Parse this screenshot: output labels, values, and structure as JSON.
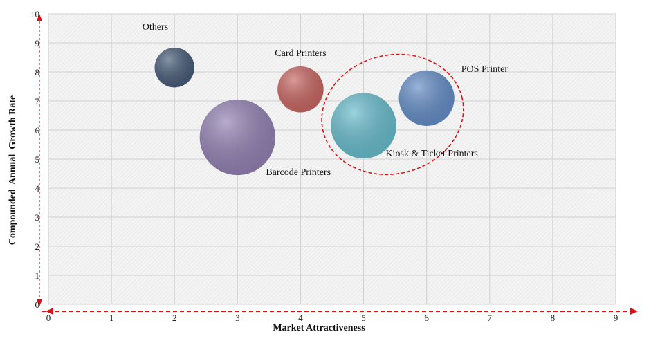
{
  "chart_data": {
    "type": "bubble",
    "title": "",
    "xlabel": "Market Attractiveness",
    "ylabel": "Compounded  Annual  Growth Rate",
    "xlim": [
      0,
      9
    ],
    "ylim": [
      0,
      10
    ],
    "x_ticks": [
      "0",
      "1",
      "2",
      "3",
      "4",
      "5",
      "6",
      "7",
      "8",
      "9"
    ],
    "y_ticks": [
      "0",
      "1",
      "2",
      "3",
      "4",
      "5",
      "6",
      "7",
      "8",
      "9",
      "10"
    ],
    "grid": true,
    "plot_background": "#f4f4f4",
    "grid_color": "#d0d0d0",
    "axis_arrow_color": "#e01010",
    "bubbles": [
      {
        "name": "Others",
        "x": 2.0,
        "y": 8.15,
        "size": 0.63,
        "color": "#3b5170"
      },
      {
        "name": "Card Printers",
        "x": 4.0,
        "y": 7.4,
        "size": 0.73,
        "color": "#c35d58"
      },
      {
        "name": "Barcode Printers",
        "x": 3.0,
        "y": 5.75,
        "size": 1.2,
        "color": "#8b79ad"
      },
      {
        "name": "Kiosk & Ticket Printers",
        "x": 5.0,
        "y": 6.15,
        "size": 1.04,
        "color": "#5fb7c8"
      },
      {
        "name": "POS Printer",
        "x": 6.0,
        "y": 7.1,
        "size": 0.88,
        "color": "#5b86c2"
      }
    ],
    "highlight": {
      "style": "dashed-ellipse",
      "color": "#e01010",
      "encloses": [
        "Kiosk & Ticket Printers",
        "POS Printer"
      ]
    }
  }
}
